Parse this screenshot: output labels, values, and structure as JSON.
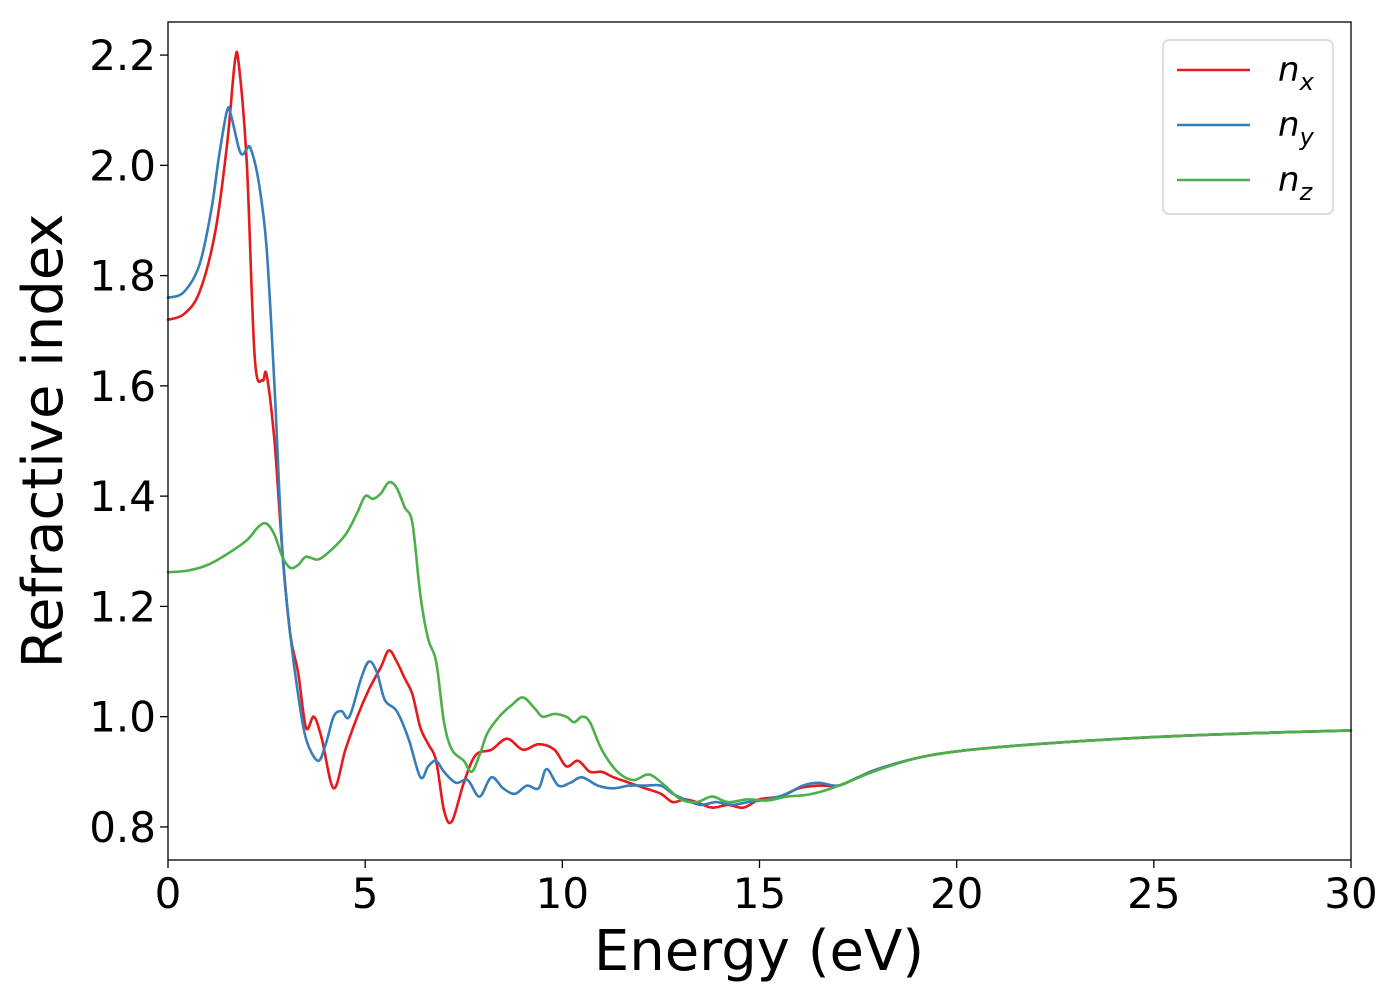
{
  "chart_data": {
    "type": "line",
    "title": "",
    "xlabel": "Energy (eV)",
    "ylabel": "Refractive index",
    "xlim": [
      0,
      30
    ],
    "ylim": [
      0.74,
      2.26
    ],
    "xticks": [
      0,
      5,
      10,
      15,
      20,
      25,
      30
    ],
    "xtick_labels": [
      "0",
      "5",
      "10",
      "15",
      "20",
      "25",
      "30"
    ],
    "yticks": [
      0.8,
      1.0,
      1.2,
      1.4,
      1.6,
      1.8,
      2.0,
      2.2
    ],
    "ytick_labels": [
      "0.8",
      "1.0",
      "1.2",
      "1.4",
      "1.6",
      "1.8",
      "2.0",
      "2.2"
    ],
    "grid": false,
    "legend_position": "top-right",
    "series": [
      {
        "name": "n",
        "subscript": "x",
        "color": "#e41a1c",
        "points": [
          [
            0,
            1.72
          ],
          [
            0.4,
            1.73
          ],
          [
            0.8,
            1.77
          ],
          [
            1.2,
            1.88
          ],
          [
            1.5,
            2.04
          ],
          [
            1.7,
            2.19
          ],
          [
            1.8,
            2.18
          ],
          [
            2.0,
            2.0
          ],
          [
            2.2,
            1.65
          ],
          [
            2.4,
            1.61
          ],
          [
            2.5,
            1.62
          ],
          [
            2.7,
            1.5
          ],
          [
            2.9,
            1.3
          ],
          [
            3.1,
            1.15
          ],
          [
            3.3,
            1.08
          ],
          [
            3.5,
            0.98
          ],
          [
            3.7,
            1.0
          ],
          [
            3.9,
            0.96
          ],
          [
            4.2,
            0.87
          ],
          [
            4.5,
            0.94
          ],
          [
            4.8,
            1.0
          ],
          [
            5.1,
            1.05
          ],
          [
            5.4,
            1.09
          ],
          [
            5.6,
            1.12
          ],
          [
            5.8,
            1.1
          ],
          [
            6.0,
            1.07
          ],
          [
            6.2,
            1.04
          ],
          [
            6.4,
            0.98
          ],
          [
            6.6,
            0.95
          ],
          [
            6.8,
            0.92
          ],
          [
            7.0,
            0.83
          ],
          [
            7.2,
            0.81
          ],
          [
            7.5,
            0.88
          ],
          [
            7.8,
            0.93
          ],
          [
            8.2,
            0.94
          ],
          [
            8.6,
            0.96
          ],
          [
            9.0,
            0.94
          ],
          [
            9.4,
            0.95
          ],
          [
            9.8,
            0.94
          ],
          [
            10.1,
            0.91
          ],
          [
            10.4,
            0.92
          ],
          [
            10.7,
            0.9
          ],
          [
            11.0,
            0.9
          ],
          [
            11.3,
            0.89
          ],
          [
            11.7,
            0.88
          ],
          [
            12.1,
            0.87
          ],
          [
            12.5,
            0.86
          ],
          [
            12.8,
            0.845
          ],
          [
            13.1,
            0.85
          ],
          [
            13.4,
            0.845
          ],
          [
            13.8,
            0.835
          ],
          [
            14.2,
            0.84
          ],
          [
            14.6,
            0.835
          ],
          [
            15.0,
            0.85
          ],
          [
            15.5,
            0.855
          ],
          [
            16.0,
            0.87
          ],
          [
            16.5,
            0.875
          ],
          [
            17.0,
            0.875
          ],
          [
            17.5,
            0.89
          ],
          [
            18.0,
            0.905
          ],
          [
            19.0,
            0.925
          ],
          [
            20.0,
            0.937
          ],
          [
            22.0,
            0.95
          ],
          [
            25.0,
            0.963
          ],
          [
            28.0,
            0.971
          ],
          [
            30.0,
            0.975
          ]
        ]
      },
      {
        "name": "n",
        "subscript": "y",
        "color": "#377eb8",
        "points": [
          [
            0,
            1.76
          ],
          [
            0.4,
            1.77
          ],
          [
            0.8,
            1.82
          ],
          [
            1.1,
            1.92
          ],
          [
            1.3,
            2.02
          ],
          [
            1.5,
            2.1
          ],
          [
            1.6,
            2.09
          ],
          [
            1.8,
            2.03
          ],
          [
            1.9,
            2.02
          ],
          [
            2.0,
            2.03
          ],
          [
            2.1,
            2.03
          ],
          [
            2.3,
            1.97
          ],
          [
            2.5,
            1.85
          ],
          [
            2.7,
            1.6
          ],
          [
            2.9,
            1.3
          ],
          [
            3.1,
            1.15
          ],
          [
            3.3,
            1.04
          ],
          [
            3.5,
            0.96
          ],
          [
            3.8,
            0.92
          ],
          [
            4.0,
            0.95
          ],
          [
            4.2,
            1.0
          ],
          [
            4.4,
            1.01
          ],
          [
            4.6,
            1.0
          ],
          [
            4.9,
            1.07
          ],
          [
            5.1,
            1.1
          ],
          [
            5.3,
            1.08
          ],
          [
            5.5,
            1.03
          ],
          [
            5.8,
            1.01
          ],
          [
            6.1,
            0.96
          ],
          [
            6.4,
            0.89
          ],
          [
            6.6,
            0.91
          ],
          [
            6.8,
            0.92
          ],
          [
            7.0,
            0.9
          ],
          [
            7.3,
            0.88
          ],
          [
            7.6,
            0.885
          ],
          [
            7.9,
            0.855
          ],
          [
            8.2,
            0.89
          ],
          [
            8.5,
            0.87
          ],
          [
            8.8,
            0.86
          ],
          [
            9.1,
            0.875
          ],
          [
            9.4,
            0.87
          ],
          [
            9.6,
            0.905
          ],
          [
            9.9,
            0.875
          ],
          [
            10.2,
            0.88
          ],
          [
            10.5,
            0.89
          ],
          [
            10.9,
            0.875
          ],
          [
            11.3,
            0.87
          ],
          [
            11.7,
            0.875
          ],
          [
            12.1,
            0.875
          ],
          [
            12.5,
            0.875
          ],
          [
            12.8,
            0.86
          ],
          [
            13.1,
            0.85
          ],
          [
            13.5,
            0.84
          ],
          [
            13.9,
            0.845
          ],
          [
            14.3,
            0.84
          ],
          [
            14.7,
            0.845
          ],
          [
            15.2,
            0.85
          ],
          [
            15.7,
            0.86
          ],
          [
            16.1,
            0.875
          ],
          [
            16.5,
            0.88
          ],
          [
            17.0,
            0.875
          ],
          [
            17.5,
            0.89
          ],
          [
            18.0,
            0.905
          ],
          [
            19.0,
            0.925
          ],
          [
            20.0,
            0.937
          ],
          [
            22.0,
            0.95
          ],
          [
            25.0,
            0.963
          ],
          [
            28.0,
            0.971
          ],
          [
            30.0,
            0.975
          ]
        ]
      },
      {
        "name": "n",
        "subscript": "z",
        "color": "#4daf4a",
        "points": [
          [
            0,
            1.262
          ],
          [
            0.5,
            1.265
          ],
          [
            1.0,
            1.275
          ],
          [
            1.5,
            1.295
          ],
          [
            2.0,
            1.32
          ],
          [
            2.3,
            1.345
          ],
          [
            2.5,
            1.35
          ],
          [
            2.7,
            1.33
          ],
          [
            2.9,
            1.29
          ],
          [
            3.1,
            1.27
          ],
          [
            3.3,
            1.275
          ],
          [
            3.5,
            1.29
          ],
          [
            3.8,
            1.285
          ],
          [
            4.1,
            1.3
          ],
          [
            4.5,
            1.33
          ],
          [
            4.8,
            1.37
          ],
          [
            5.0,
            1.4
          ],
          [
            5.2,
            1.395
          ],
          [
            5.4,
            1.405
          ],
          [
            5.6,
            1.425
          ],
          [
            5.8,
            1.415
          ],
          [
            6.0,
            1.38
          ],
          [
            6.2,
            1.35
          ],
          [
            6.4,
            1.22
          ],
          [
            6.6,
            1.14
          ],
          [
            6.8,
            1.1
          ],
          [
            7.0,
            0.99
          ],
          [
            7.2,
            0.94
          ],
          [
            7.5,
            0.92
          ],
          [
            7.7,
            0.9
          ],
          [
            7.9,
            0.93
          ],
          [
            8.1,
            0.97
          ],
          [
            8.4,
            1.0
          ],
          [
            8.7,
            1.02
          ],
          [
            9.0,
            1.035
          ],
          [
            9.3,
            1.015
          ],
          [
            9.5,
            1.0
          ],
          [
            9.8,
            1.005
          ],
          [
            10.1,
            1.0
          ],
          [
            10.3,
            0.99
          ],
          [
            10.5,
            1.0
          ],
          [
            10.7,
            0.99
          ],
          [
            11.0,
            0.94
          ],
          [
            11.4,
            0.9
          ],
          [
            11.8,
            0.885
          ],
          [
            12.2,
            0.895
          ],
          [
            12.6,
            0.875
          ],
          [
            13.0,
            0.85
          ],
          [
            13.4,
            0.845
          ],
          [
            13.8,
            0.855
          ],
          [
            14.2,
            0.845
          ],
          [
            14.7,
            0.85
          ],
          [
            15.2,
            0.848
          ],
          [
            15.7,
            0.855
          ],
          [
            16.2,
            0.858
          ],
          [
            16.7,
            0.867
          ],
          [
            17.2,
            0.88
          ],
          [
            17.7,
            0.895
          ],
          [
            18.2,
            0.908
          ],
          [
            19.0,
            0.925
          ],
          [
            20.0,
            0.937
          ],
          [
            22.0,
            0.95
          ],
          [
            25.0,
            0.963
          ],
          [
            28.0,
            0.971
          ],
          [
            30.0,
            0.975
          ]
        ]
      }
    ]
  }
}
